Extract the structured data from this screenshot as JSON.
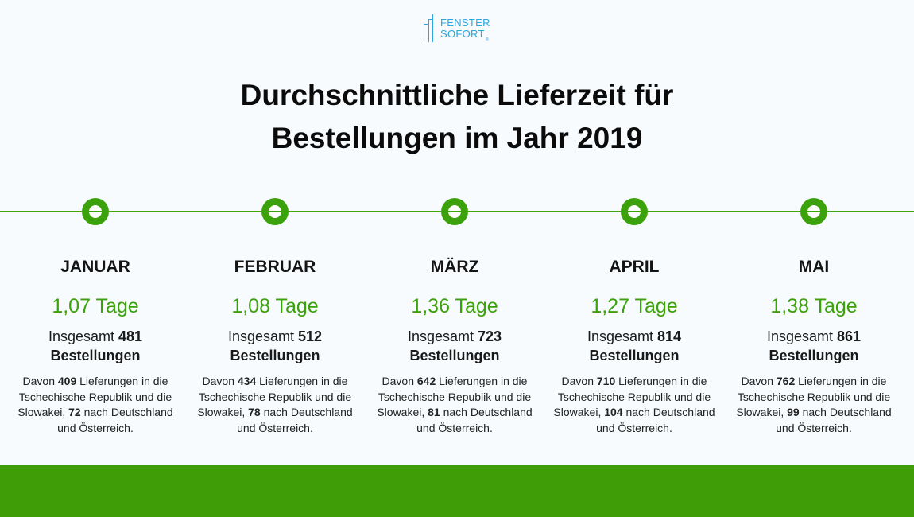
{
  "logo": {
    "line1": "FENSTER",
    "line2": "SOFORT",
    "reg": "®"
  },
  "title": {
    "line1": "Durchschnittliche Lieferzeit für",
    "line2": "Bestellungen im Jahr 2019"
  },
  "colors": {
    "accent_green": "#3ca20c",
    "logo_blue": "#2aa7df",
    "background": "#f7fbfd"
  },
  "months": [
    {
      "name": "JANUAR",
      "days": "1,07 Tage",
      "total_prefix": "Insgesamt",
      "total_count": "481",
      "total_suffix": "Bestellungen",
      "detail_prefix": "Davon",
      "cz_sk": "409",
      "detail_mid": "Lieferungen in die Tschechische Republik und die Slowakei,",
      "de_at": "72",
      "detail_suffix": "nach Deutschland und Österreich."
    },
    {
      "name": "FEBRUAR",
      "days": "1,08 Tage",
      "total_prefix": "Insgesamt",
      "total_count": "512",
      "total_suffix": "Bestellungen",
      "detail_prefix": "Davon",
      "cz_sk": "434",
      "detail_mid": "Lieferungen in die Tschechische Republik und die Slowakei,",
      "de_at": "78",
      "detail_suffix": "nach Deutschland und Österreich."
    },
    {
      "name": "MÄRZ",
      "days": "1,36 Tage",
      "total_prefix": "Insgesamt",
      "total_count": "723",
      "total_suffix": "Bestellungen",
      "detail_prefix": "Davon",
      "cz_sk": "642",
      "detail_mid": "Lieferungen in die Tschechische Republik und die Slowakei,",
      "de_at": "81",
      "detail_suffix": "nach Deutschland und Österreich."
    },
    {
      "name": "APRIL",
      "days": "1,27 Tage",
      "total_prefix": "Insgesamt",
      "total_count": "814",
      "total_suffix": "Bestellungen",
      "detail_prefix": "Davon",
      "cz_sk": "710",
      "detail_mid": "Lieferungen in die Tschechische Republik und die Slowakei,",
      "de_at": "104",
      "detail_suffix": "nach Deutschland und Österreich."
    },
    {
      "name": "MAI",
      "days": "1,38 Tage",
      "total_prefix": "Insgesamt",
      "total_count": "861",
      "total_suffix": "Bestellungen",
      "detail_prefix": "Davon",
      "cz_sk": "762",
      "detail_mid": "Lieferungen in die Tschechische Republik und die Slowakei,",
      "de_at": "99",
      "detail_suffix": "nach Deutschland und Österreich."
    }
  ]
}
